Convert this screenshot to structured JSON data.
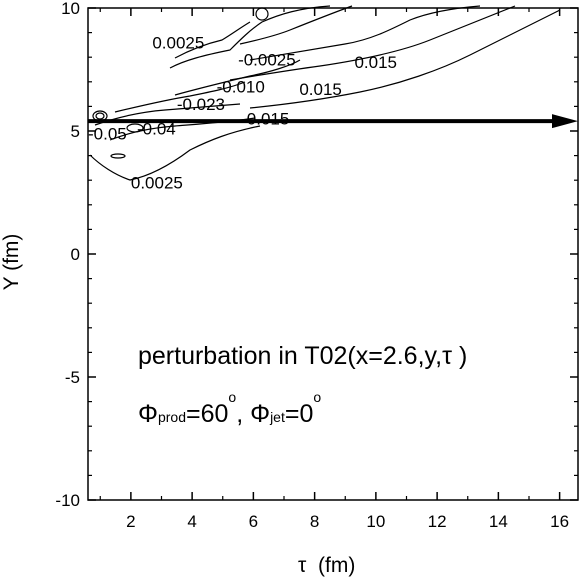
{
  "chart_data": {
    "type": "contour",
    "xlabel_symbol": "τ",
    "xlabel_unit": "(fm)",
    "ylabel": "Y (fm)",
    "xlim": [
      0.6,
      16.6
    ],
    "ylim": [
      -10,
      10
    ],
    "x_ticks": [
      "2",
      "4",
      "6",
      "8",
      "10",
      "12",
      "14",
      "16"
    ],
    "y_ticks": [
      "-10",
      "-5",
      "0",
      "5",
      "10"
    ],
    "x_tick_values": [
      2,
      4,
      6,
      8,
      10,
      12,
      14,
      16
    ],
    "y_tick_values": [
      -10,
      -5,
      0,
      5,
      10
    ],
    "annotation": {
      "line1": "perturbation in T02(x=2.6,y,",
      "line1_tau": "τ",
      "line1_end": " )",
      "phi_symbol": "Φ",
      "phi_prod_sub": "prod",
      "phi_prod_value": "=60",
      "degree_1": "o",
      "separator": ", ",
      "phi_jet_sub": "jet",
      "phi_jet_value": "=0",
      "degree_2": "o"
    },
    "arrow": {
      "y": 5.4,
      "x_start": 0.6,
      "x_end": 16.6
    },
    "contour_labels": [
      {
        "text": "0.0025",
        "x": 2.7,
        "y": 8.6
      },
      {
        "text": "-0.0025",
        "x": 5.5,
        "y": 7.9
      },
      {
        "text": "0.015",
        "x": 9.3,
        "y": 7.8
      },
      {
        "text": "-0.010",
        "x": 4.8,
        "y": 6.8
      },
      {
        "text": "0.015",
        "x": 7.5,
        "y": 6.7
      },
      {
        "text": "-0.023",
        "x": 3.5,
        "y": 6.1
      },
      {
        "text": "-0.015",
        "x": 5.6,
        "y": 5.5
      },
      {
        "text": "-0.05",
        "x": 0.6,
        "y": 4.9
      },
      {
        "text": "-0.04",
        "x": 2.2,
        "y": 5.1
      },
      {
        "text": "0.0025",
        "x": 2.0,
        "y": 2.9
      }
    ]
  }
}
